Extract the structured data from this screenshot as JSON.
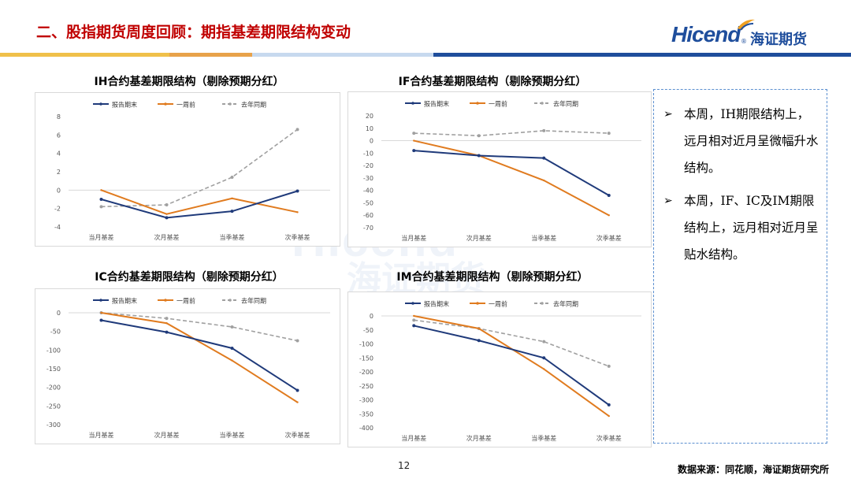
{
  "header": {
    "title": "二、股指期货周度回顾：期指基差期限结构变动",
    "logo_text": "Hicend",
    "logo_cn": "海证期货",
    "bar_colors": [
      "#f0c04a",
      "#e8a24a",
      "#c7d9ef",
      "#1f4e9c"
    ]
  },
  "watermark": {
    "text": "Hicend",
    "cn": "海证期货"
  },
  "legend_labels": [
    "报告期末",
    "一周前",
    "去年同期"
  ],
  "series_colors": {
    "报告期末": "#1f3a7a",
    "一周前": "#e07b1f",
    "去年同期": "#a0a0a0"
  },
  "chart_data": [
    {
      "type": "line",
      "title": "IH合约基差期限结构（剔除预期分红）",
      "categories": [
        "当月基差",
        "次月基差",
        "当季基差",
        "次季基差"
      ],
      "ylim": [
        -4,
        8
      ],
      "yticks": [
        -4,
        -2,
        0,
        2,
        4,
        6,
        8
      ],
      "series": [
        {
          "name": "报告期末",
          "values": [
            -1.0,
            -3.0,
            -2.3,
            -0.1
          ]
        },
        {
          "name": "一周前",
          "values": [
            0.0,
            -2.6,
            -0.9,
            -2.4
          ]
        },
        {
          "name": "去年同期",
          "values": [
            -1.8,
            -1.6,
            1.4,
            6.6
          ]
        }
      ]
    },
    {
      "type": "line",
      "title": "IF合约基差期限结构（剔除预期分红）",
      "categories": [
        "当月基差",
        "次月基差",
        "当季基差",
        "次季基差"
      ],
      "ylim": [
        -70,
        20
      ],
      "yticks": [
        -70,
        -60,
        -50,
        -40,
        -30,
        -20,
        -10,
        0,
        10,
        20
      ],
      "series": [
        {
          "name": "报告期末",
          "values": [
            -8,
            -12,
            -14,
            -44
          ]
        },
        {
          "name": "一周前",
          "values": [
            0,
            -12,
            -32,
            -60
          ]
        },
        {
          "name": "去年同期",
          "values": [
            6,
            4,
            8,
            6
          ]
        }
      ]
    },
    {
      "type": "line",
      "title": "IC合约基差期限结构（剔除预期分红）",
      "categories": [
        "当月基差",
        "次月基差",
        "当季基差",
        "次季基差"
      ],
      "ylim": [
        -300,
        0
      ],
      "yticks": [
        -300,
        -250,
        -200,
        -150,
        -100,
        -50,
        0
      ],
      "series": [
        {
          "name": "报告期末",
          "values": [
            -20,
            -52,
            -95,
            -208
          ]
        },
        {
          "name": "一周前",
          "values": [
            0,
            -28,
            -128,
            -240
          ]
        },
        {
          "name": "去年同期",
          "values": [
            0,
            -15,
            -38,
            -75
          ]
        }
      ]
    },
    {
      "type": "line",
      "title": "IM合约基差期限结构（剔除预期分红）",
      "categories": [
        "当月基差",
        "次月基差",
        "当季基差",
        "次季基差"
      ],
      "ylim": [
        -400,
        0
      ],
      "yticks": [
        -400,
        -350,
        -300,
        -250,
        -200,
        -150,
        -100,
        -50,
        0
      ],
      "series": [
        {
          "name": "报告期末",
          "values": [
            -35,
            -88,
            -150,
            -318
          ]
        },
        {
          "name": "一周前",
          "values": [
            0,
            -45,
            -190,
            -358
          ]
        },
        {
          "name": "去年同期",
          "values": [
            -15,
            -45,
            -92,
            -180
          ]
        }
      ]
    }
  ],
  "bullets": [
    "本周，IH期限结构上，远月相对近月呈微幅升水结构。",
    "本周，IF、IC及IM期限结构上，远月相对近月呈贴水结构。"
  ],
  "footer": {
    "page": "12",
    "source": "数据来源：同花顺，海证期货研究所"
  }
}
